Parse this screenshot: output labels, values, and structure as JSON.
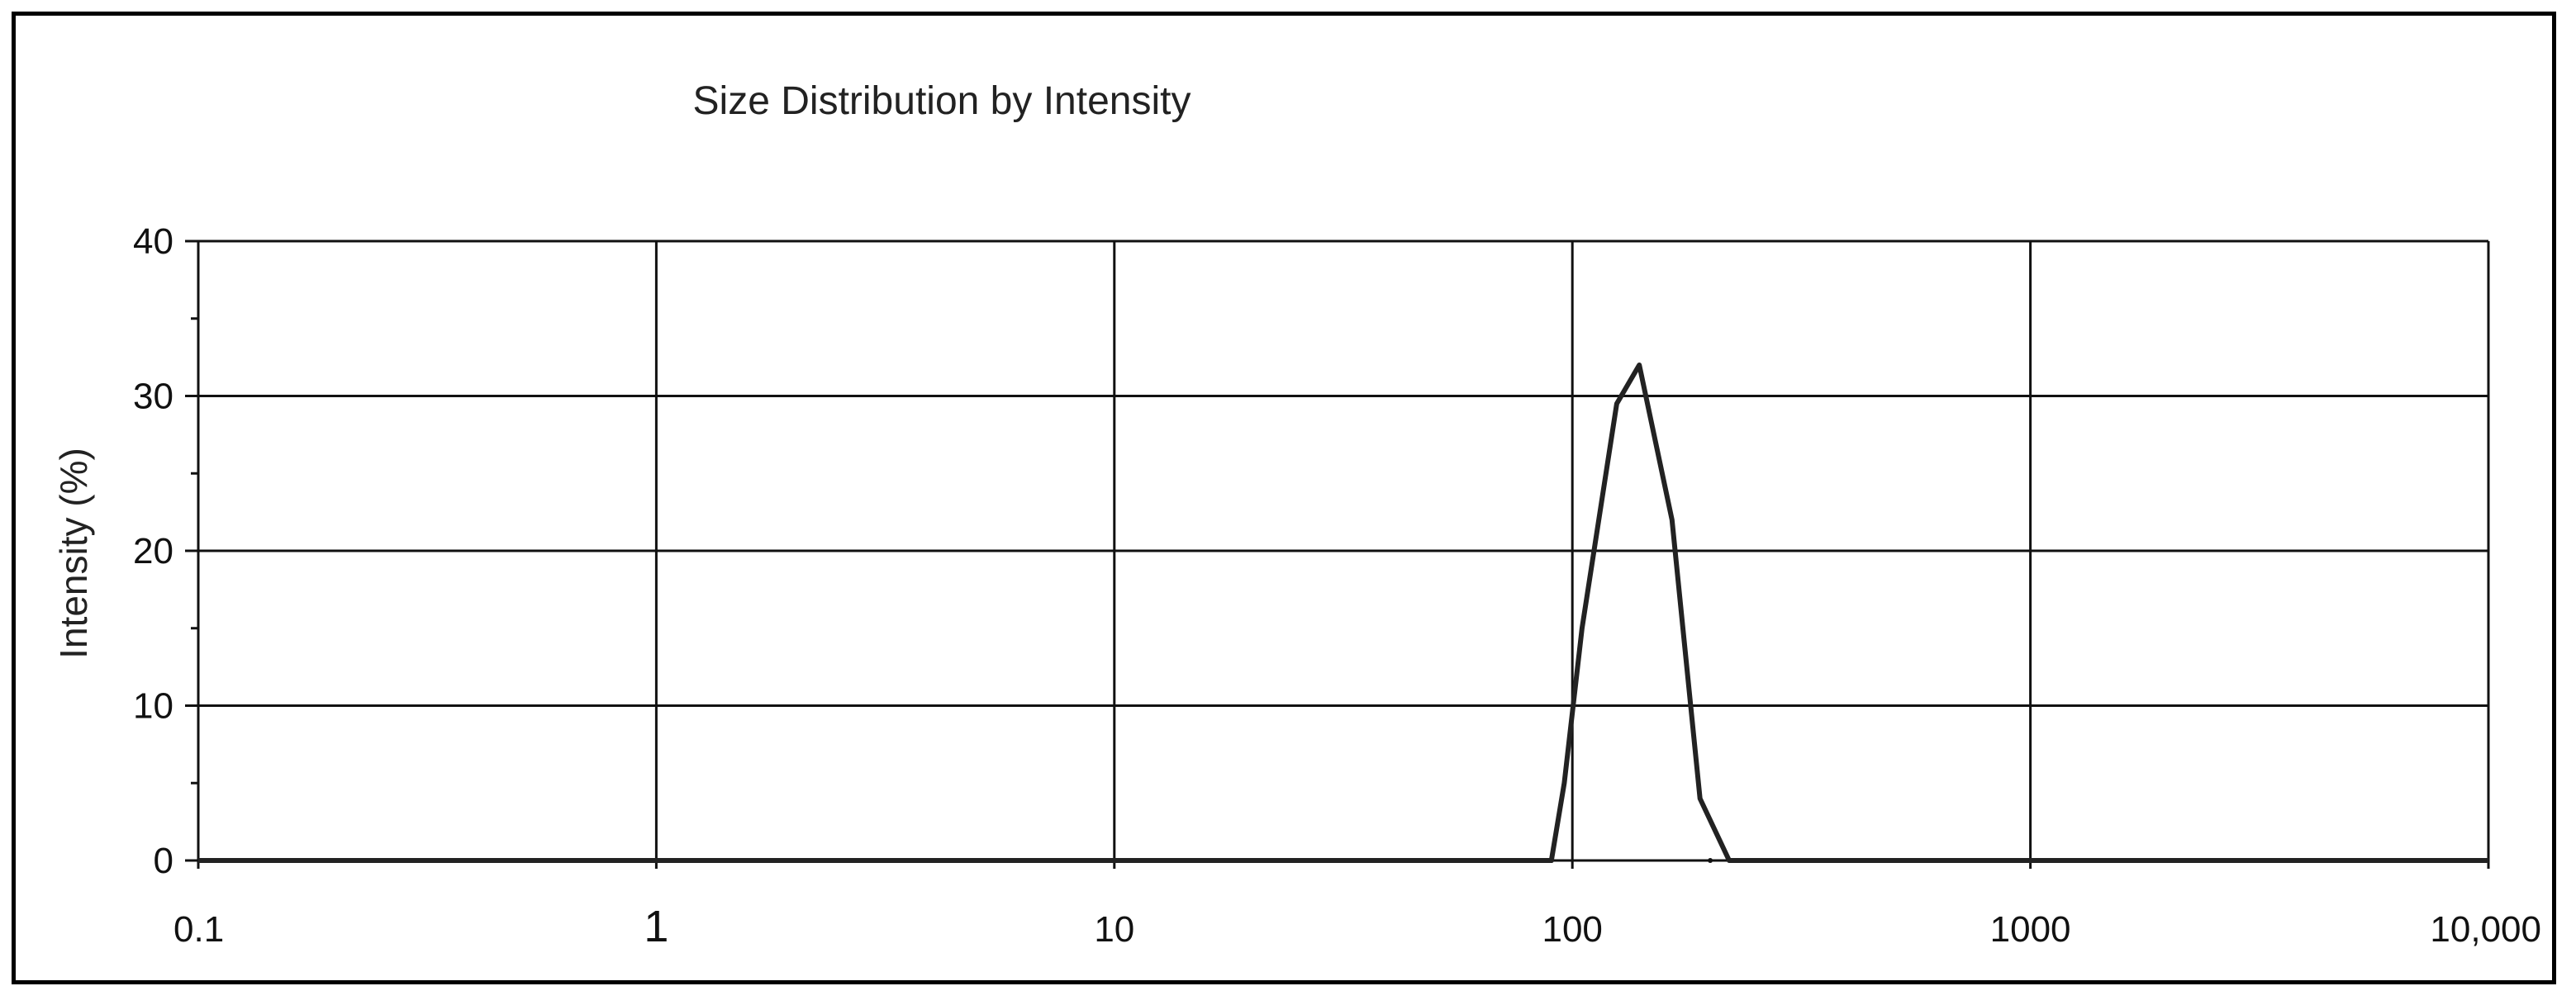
{
  "chart_data": {
    "type": "line",
    "title": "Size Distribution by Intensity",
    "xlabel": "",
    "ylabel": "Intensity (%)",
    "x_scale": "log",
    "xlim": [
      0.1,
      10000
    ],
    "ylim": [
      0,
      40
    ],
    "x_ticks": [
      0.1,
      1,
      10,
      100,
      1000,
      10000
    ],
    "x_tick_labels": [
      "0.1",
      "1",
      "10",
      "100",
      "1000",
      "10,000"
    ],
    "y_ticks": [
      0,
      10,
      20,
      30,
      40
    ],
    "y_tick_labels": [
      "0",
      "10",
      "20",
      "30",
      "40"
    ],
    "grid": true,
    "legend": "none",
    "series": [
      {
        "color": "#222222",
        "x": [
          0.1,
          90,
          96,
          105,
          125,
          140,
          165,
          190,
          220,
          10000
        ],
        "y": [
          0,
          0,
          5,
          15,
          29.5,
          32,
          22,
          4,
          0,
          0
        ]
      }
    ]
  }
}
